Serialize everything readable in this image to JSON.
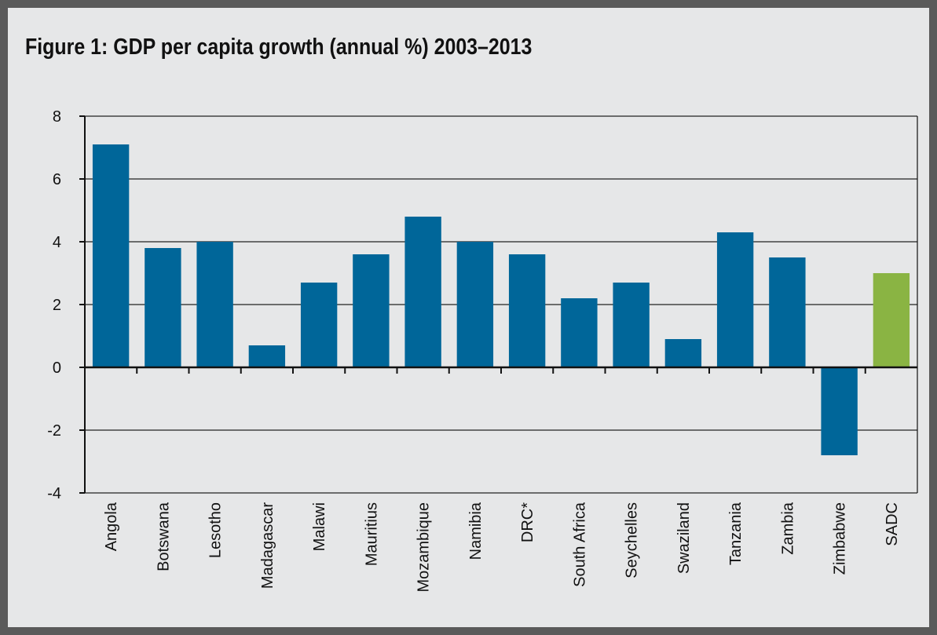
{
  "colors": {
    "frame": "#5a5a5a",
    "background": "#e6e7e8",
    "bar_primary": "#006699",
    "bar_highlight": "#8ab443",
    "axis": "#111111"
  },
  "chart_data": {
    "type": "bar",
    "title": "Figure 1: GDP per capita growth (annual %) 2003–2013",
    "xlabel": "",
    "ylabel": "",
    "ylim": [
      -4,
      8
    ],
    "yticks": [
      8,
      6,
      4,
      2,
      0,
      -2,
      -4
    ],
    "grid": true,
    "categories": [
      "Angola",
      "Botswana",
      "Lesotho",
      "Madagascar",
      "Malawi",
      "Mauritius",
      "Mozambique",
      "Namibia",
      "DRC*",
      "South Africa",
      "Seychelles",
      "Swaziland",
      "Tanzania",
      "Zambia",
      "Zimbabwe",
      "SADC"
    ],
    "values": [
      7.1,
      3.8,
      4.0,
      0.7,
      2.7,
      3.6,
      4.8,
      4.0,
      3.6,
      2.2,
      2.7,
      0.9,
      4.3,
      3.5,
      -2.8,
      3.0
    ],
    "highlight_category": "SADC"
  }
}
